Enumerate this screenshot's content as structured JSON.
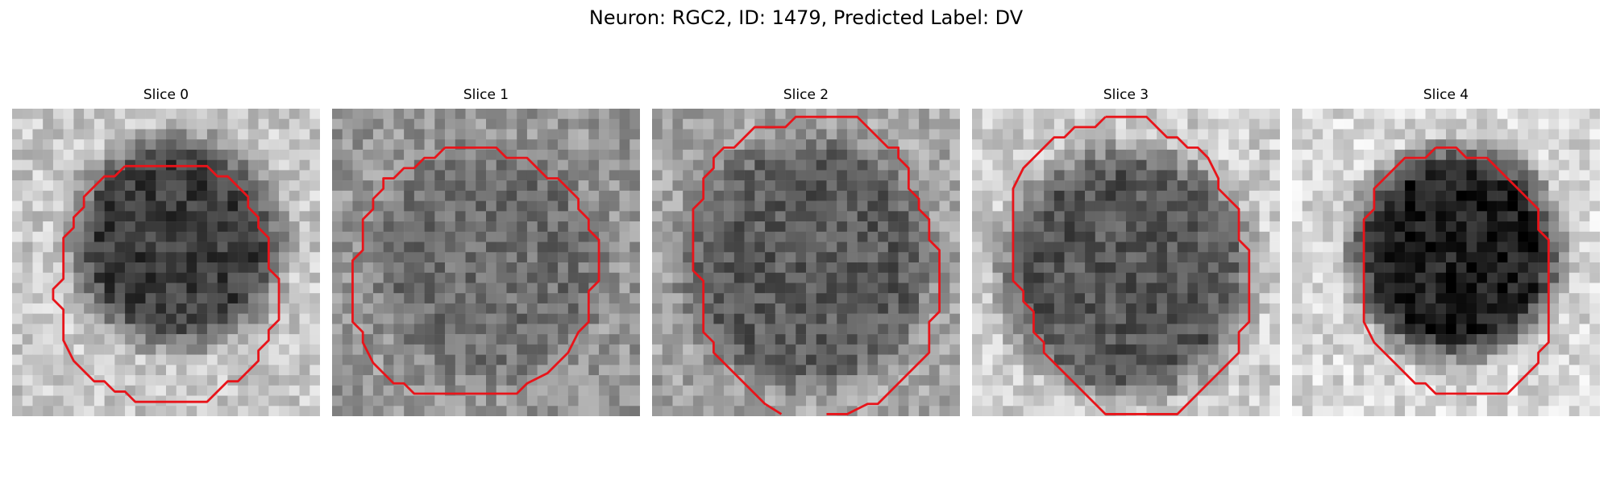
{
  "figure": {
    "title": "Neuron: RGC2, ID: 1479, Predicted Label: DV",
    "contour_color": "#e8141a"
  },
  "slices": [
    {
      "label": "Slice 0"
    },
    {
      "label": "Slice 1"
    },
    {
      "label": "Slice 2"
    },
    {
      "label": "Slice 3"
    },
    {
      "label": "Slice 4"
    }
  ]
}
